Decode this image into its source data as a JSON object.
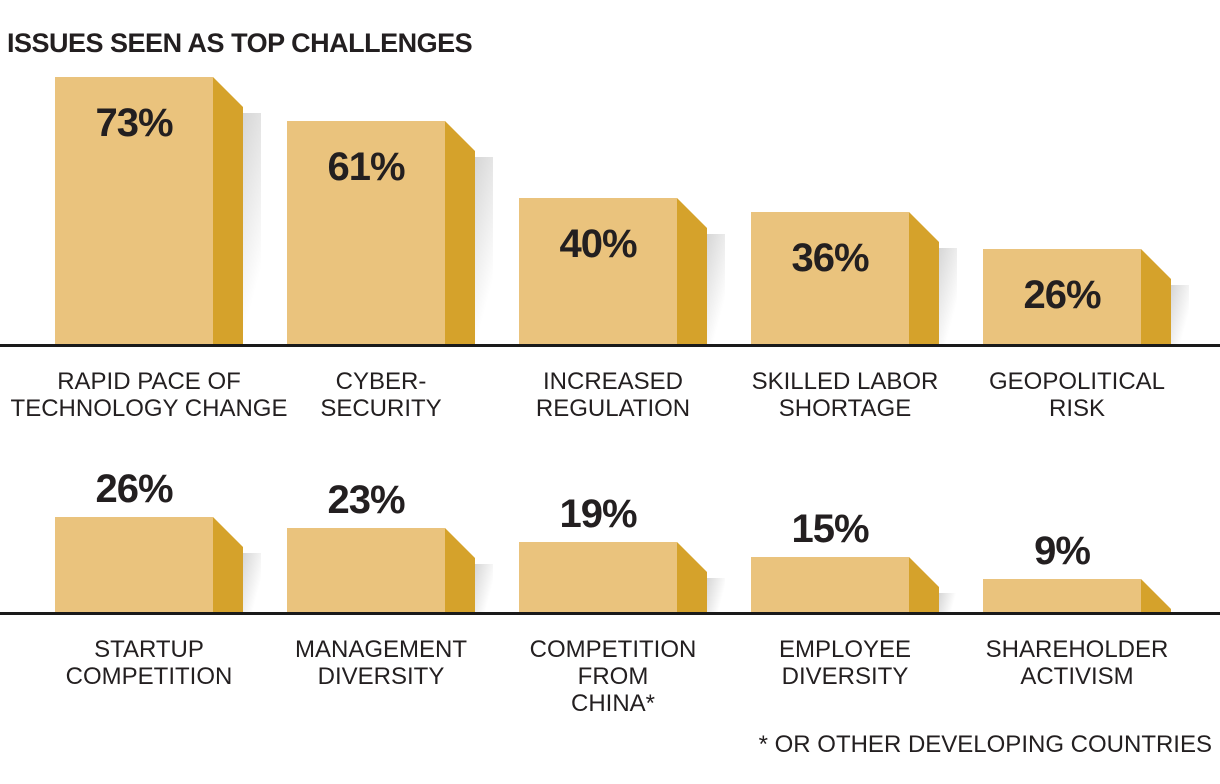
{
  "title": "ISSUES SEEN AS TOP CHALLENGES",
  "footnote": "* OR OTHER DEVELOPING COUNTRIES",
  "colors": {
    "bar_face": "#EAC37D",
    "bar_side": "#D5A22B",
    "text_dark": "#231F20",
    "baseline": "#1A1A1A"
  },
  "chart_data": {
    "type": "bar",
    "title": "ISSUES SEEN AS TOP CHALLENGES",
    "unit": "%",
    "ylim": [
      0,
      100
    ],
    "grid": false,
    "legend": "none",
    "value_labels": "shown on/above each bar",
    "footnote": "* OR OTHER DEVELOPING COUNTRIES",
    "categories": [
      "RAPID PACE OF TECHNOLOGY CHANGE",
      "CYBER-SECURITY",
      "INCREASED REGULATION",
      "SKILLED LABOR SHORTAGE",
      "GEOPOLITICAL RISK",
      "STARTUP COMPETITION",
      "MANAGEMENT DIVERSITY",
      "COMPETITION FROM CHINA*",
      "EMPLOYEE DIVERSITY",
      "SHAREHOLDER ACTIVISM"
    ],
    "values": [
      73,
      61,
      40,
      36,
      26,
      26,
      23,
      19,
      15,
      9
    ],
    "rows": [
      {
        "items": [
          {
            "label": "RAPID PACE OF TECHNOLOGY CHANGE",
            "label_lines": [
              "RAPID PACE OF",
              "TECHNOLOGY CHANGE",
              ""
            ],
            "value": 73,
            "value_label": "73%"
          },
          {
            "label": "CYBER-SECURITY",
            "label_lines": [
              "CYBER-",
              "SECURITY",
              ""
            ],
            "value": 61,
            "value_label": "61%"
          },
          {
            "label": "INCREASED REGULATION",
            "label_lines": [
              "INCREASED",
              "REGULATION",
              ""
            ],
            "value": 40,
            "value_label": "40%"
          },
          {
            "label": "SKILLED LABOR SHORTAGE",
            "label_lines": [
              "SKILLED LABOR",
              "SHORTAGE",
              ""
            ],
            "value": 36,
            "value_label": "36%"
          },
          {
            "label": "GEOPOLITICAL RISK",
            "label_lines": [
              "GEOPOLITICAL",
              "RISK",
              ""
            ],
            "value": 26,
            "value_label": "26%"
          }
        ]
      },
      {
        "items": [
          {
            "label": "STARTUP COMPETITION",
            "label_lines": [
              "STARTUP",
              "COMPETITION",
              ""
            ],
            "value": 26,
            "value_label": "26%"
          },
          {
            "label": "MANAGEMENT DIVERSITY",
            "label_lines": [
              "MANAGEMENT",
              "DIVERSITY",
              ""
            ],
            "value": 23,
            "value_label": "23%"
          },
          {
            "label": "COMPETITION FROM CHINA*",
            "label_lines": [
              "COMPETITION",
              "FROM",
              "CHINA*"
            ],
            "value": 19,
            "value_label": "19%"
          },
          {
            "label": "EMPLOYEE DIVERSITY",
            "label_lines": [
              "EMPLOYEE",
              "DIVERSITY",
              ""
            ],
            "value": 15,
            "value_label": "15%"
          },
          {
            "label": "SHAREHOLDER ACTIVISM",
            "label_lines": [
              "SHAREHOLDER",
              "ACTIVISM",
              ""
            ],
            "value": 9,
            "value_label": "9%"
          }
        ]
      }
    ]
  }
}
